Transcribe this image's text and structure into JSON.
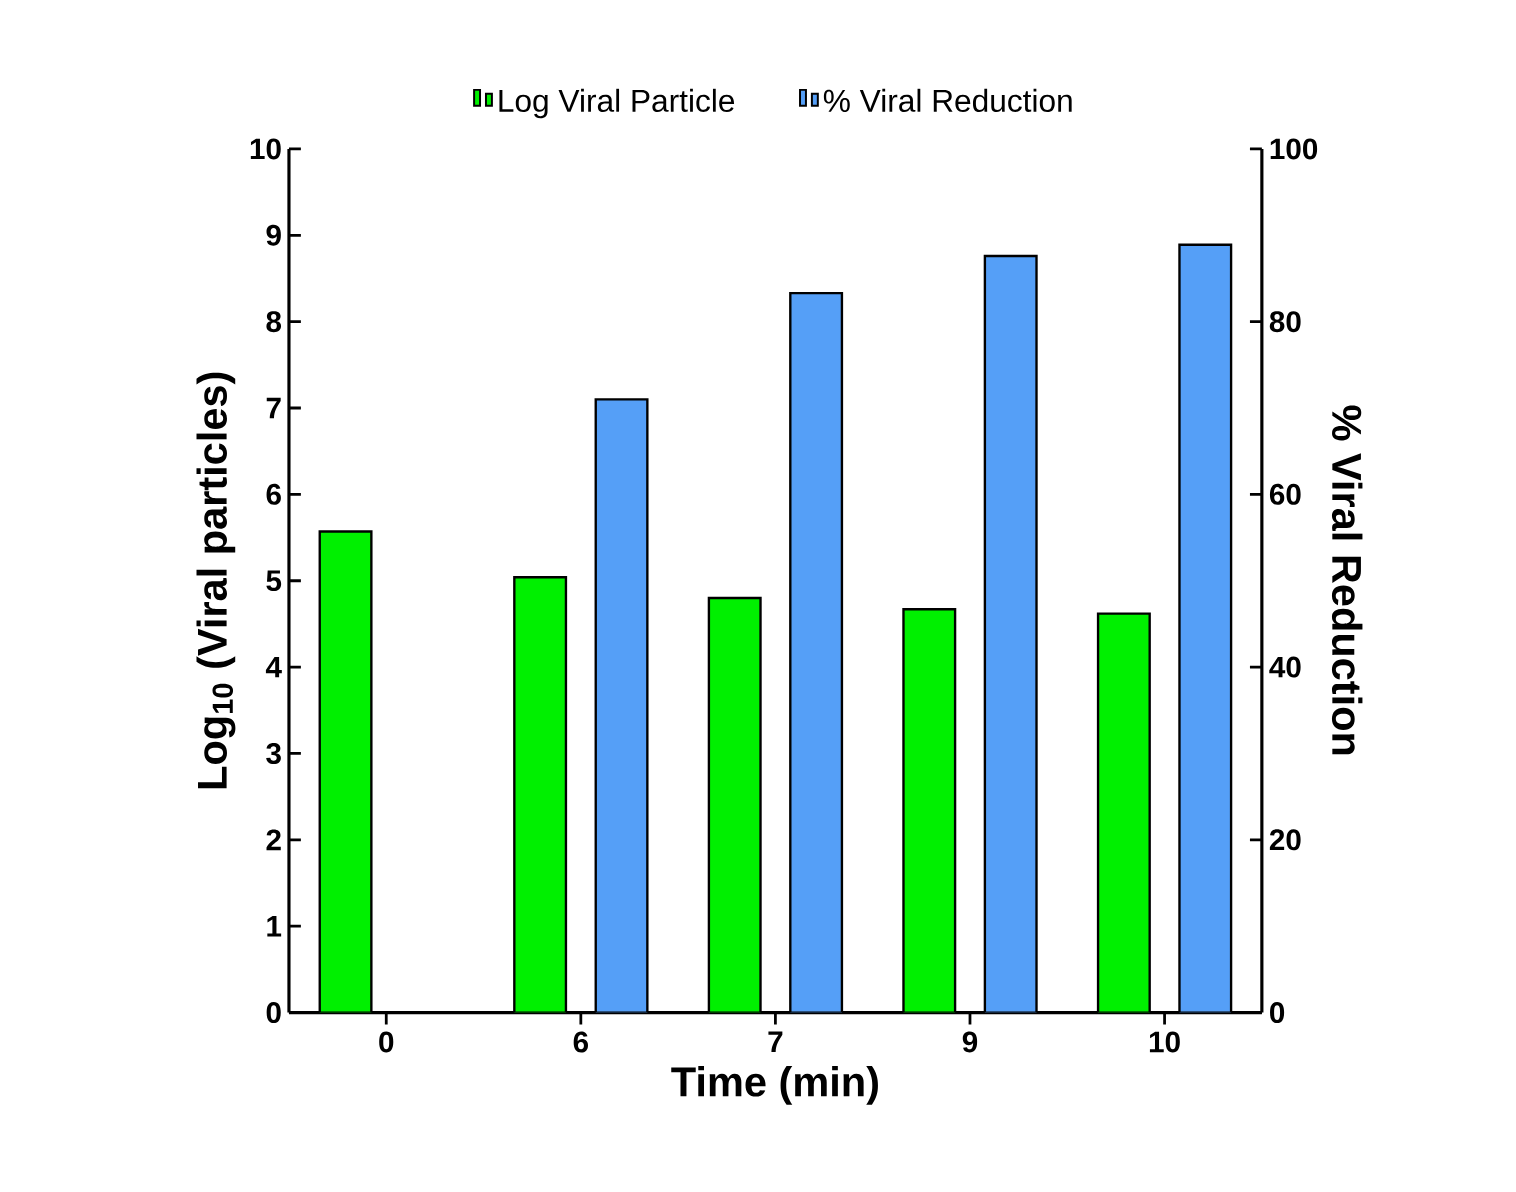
{
  "chart_data": {
    "type": "bar",
    "xlabel": "Time (min)",
    "ylabel": "Log$_{10}$ (Viral particles)",
    "y2label": "% Viral Reduction",
    "categories": [
      "0",
      "6",
      "7",
      "9",
      "10"
    ],
    "series": [
      {
        "name": "Log Viral Particle",
        "color": "#00f000",
        "values": [
          5.57,
          5.04,
          4.8,
          4.67,
          4.62
        ]
      },
      {
        "name": "% Viral Reduction",
        "color": "#559ff7",
        "axis": "y2",
        "values": [
          null,
          71.0,
          83.3,
          87.6,
          88.9
        ]
      }
    ],
    "ylim": [
      0,
      10
    ],
    "yticks": [
      0,
      1,
      2,
      3,
      4,
      5,
      6,
      7,
      8,
      9,
      10
    ],
    "y2lim": [
      0,
      100
    ],
    "y2ticks": [
      0,
      20,
      40,
      60,
      80,
      100
    ],
    "legend": "top",
    "grid": false
  }
}
